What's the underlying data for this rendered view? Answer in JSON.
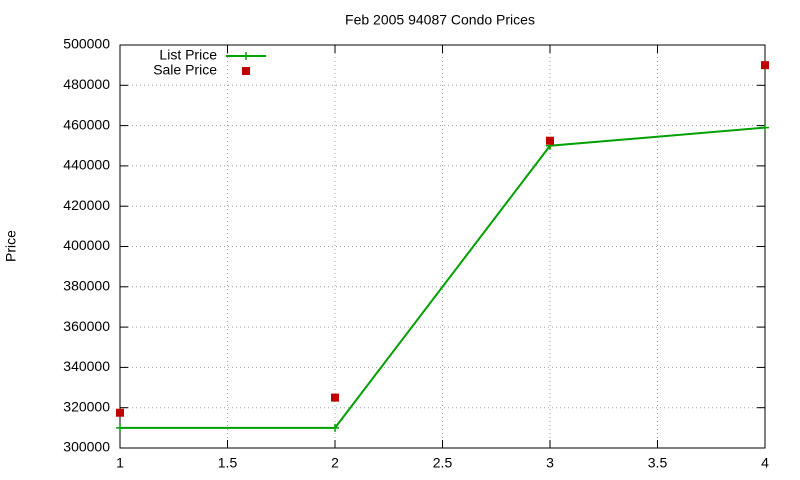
{
  "chart_data": {
    "type": "line",
    "title": "Feb 2005 94087 Condo Prices",
    "y_label": "Price",
    "x": [
      1,
      2,
      3,
      4
    ],
    "series": [
      {
        "name": "List Price",
        "color": "#00a000",
        "style": "linespoints",
        "values": [
          310000,
          310000,
          450000,
          459000
        ]
      },
      {
        "name": "Sale Price",
        "color": "#c00000",
        "style": "points",
        "values": [
          317500,
          325000,
          452500,
          490000
        ]
      }
    ],
    "xlim": [
      1,
      4
    ],
    "xticks": [
      1,
      1.5,
      2,
      2.5,
      3,
      3.5,
      4
    ],
    "ylim": [
      300000,
      500000
    ],
    "yticks": [
      300000,
      320000,
      340000,
      360000,
      380000,
      400000,
      420000,
      440000,
      460000,
      480000,
      500000
    ],
    "grid": true,
    "legend": "top-left"
  }
}
